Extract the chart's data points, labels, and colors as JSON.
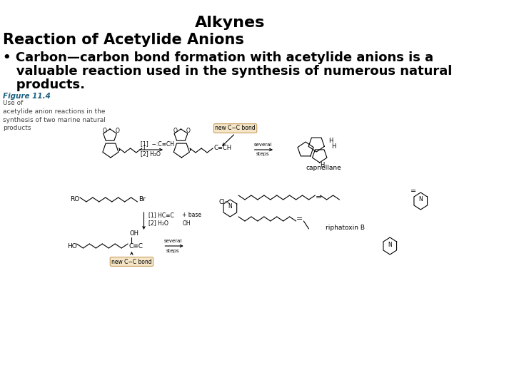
{
  "title": "Alkynes",
  "subtitle": "Reaction of Acetylide Anions",
  "bullet_line1": "• Carbon—carbon bond formation with acetylide anions is a",
  "bullet_line2": "   valuable reaction used in the synthesis of numerous natural",
  "bullet_line3": "   products.",
  "figure_label": "Figure 11.4",
  "figure_caption_line1": "Use of",
  "figure_caption_line2": "acetylide anion reactions in the",
  "figure_caption_line3": "synthesis of two marine natural",
  "figure_caption_line4": "products",
  "bg_color": "#ffffff",
  "title_fontsize": 16,
  "subtitle_fontsize": 15,
  "bullet_fontsize": 13,
  "fig_label_fontsize": 7.5,
  "fig_caption_fontsize": 6.5,
  "chem_fontsize": 6,
  "title_color": "#000000",
  "subtitle_color": "#000000",
  "bullet_color": "#000000",
  "figure_label_color": "#1a6080",
  "figure_caption_color": "#444444",
  "chem_color": "#000000",
  "box_facecolor": "#f5e6c8",
  "box_edgecolor": "#c8a060"
}
